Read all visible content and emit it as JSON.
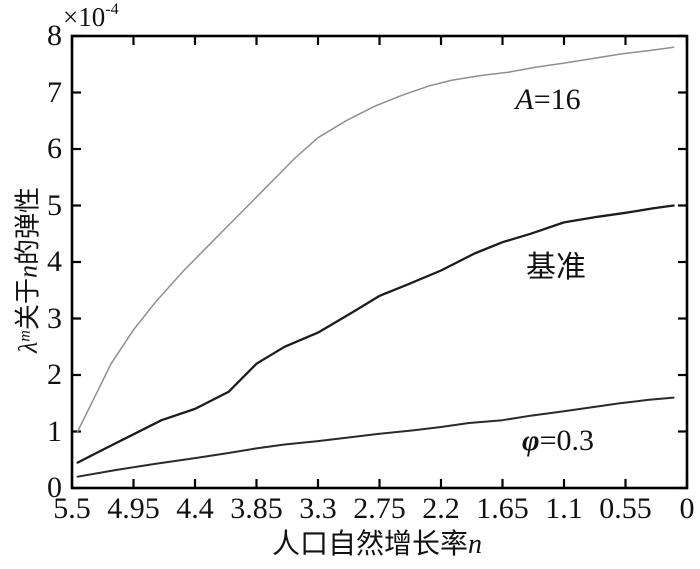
{
  "figure": {
    "background": "#ffffff",
    "axis_color": "#000000"
  },
  "labels": {
    "multiplier_base": "×10",
    "multiplier_exp": "-4",
    "ylabel_lambda": "λ",
    "ylabel_sup": "m",
    "ylabel_mid": "关于",
    "ylabel_n": "n",
    "ylabel_rest": "的弹性",
    "xlabel_main": "人口自然增长率",
    "xlabel_n": "n"
  },
  "annotations": {
    "a16": {
      "italic": "A",
      "rest": "=16"
    },
    "base": {
      "text": "基准"
    },
    "phi": {
      "italic": "φ",
      "rest": "=0.3"
    }
  },
  "chart_data": {
    "type": "line",
    "title": "",
    "xlabel": "人口自然增长率n",
    "ylabel": "λ^m关于n的弹性",
    "y_unit_multiplier": "×10^-4",
    "xlim": [
      5.5,
      0
    ],
    "ylim": [
      0,
      8
    ],
    "x_axis_reversed": true,
    "grid": false,
    "legend_position": "inline-annotations",
    "x_tick_labels": [
      "5.5",
      "4.95",
      "4.4",
      "3.85",
      "3.3",
      "2.75",
      "2.2",
      "1.65",
      "1.1",
      "0.55",
      "0"
    ],
    "x_ticks": [
      5.5,
      4.95,
      4.4,
      3.85,
      3.3,
      2.75,
      2.2,
      1.65,
      1.1,
      0.55,
      0
    ],
    "y_tick_labels": [
      "0",
      "1",
      "2",
      "3",
      "4",
      "5",
      "6",
      "7",
      "8"
    ],
    "y_ticks": [
      0,
      1,
      2,
      3,
      4,
      5,
      6,
      7,
      8
    ],
    "series": [
      {
        "name": "A=16",
        "color": "#8f8f8f",
        "stroke_width": 1.5,
        "points": [
          [
            5.45,
            1.0
          ],
          [
            5.3,
            1.6
          ],
          [
            5.15,
            2.2
          ],
          [
            4.95,
            2.8
          ],
          [
            4.75,
            3.3
          ],
          [
            4.5,
            3.85
          ],
          [
            4.25,
            4.35
          ],
          [
            4.0,
            4.85
          ],
          [
            3.75,
            5.35
          ],
          [
            3.5,
            5.85
          ],
          [
            3.3,
            6.2
          ],
          [
            3.05,
            6.5
          ],
          [
            2.8,
            6.75
          ],
          [
            2.55,
            6.95
          ],
          [
            2.3,
            7.12
          ],
          [
            2.1,
            7.22
          ],
          [
            1.85,
            7.3
          ],
          [
            1.6,
            7.36
          ],
          [
            1.35,
            7.45
          ],
          [
            1.1,
            7.52
          ],
          [
            0.85,
            7.6
          ],
          [
            0.6,
            7.68
          ],
          [
            0.35,
            7.74
          ],
          [
            0.12,
            7.8
          ]
        ]
      },
      {
        "name": "基准",
        "color": "#1c1c1c",
        "stroke_width": 2.3,
        "points": [
          [
            5.45,
            0.45
          ],
          [
            5.2,
            0.7
          ],
          [
            4.95,
            0.95
          ],
          [
            4.7,
            1.2
          ],
          [
            4.4,
            1.4
          ],
          [
            4.1,
            1.7
          ],
          [
            3.85,
            2.2
          ],
          [
            3.6,
            2.5
          ],
          [
            3.3,
            2.75
          ],
          [
            3.0,
            3.1
          ],
          [
            2.75,
            3.4
          ],
          [
            2.5,
            3.6
          ],
          [
            2.2,
            3.85
          ],
          [
            1.9,
            4.15
          ],
          [
            1.65,
            4.35
          ],
          [
            1.4,
            4.5
          ],
          [
            1.1,
            4.7
          ],
          [
            0.8,
            4.8
          ],
          [
            0.55,
            4.87
          ],
          [
            0.3,
            4.95
          ],
          [
            0.12,
            5.0
          ]
        ]
      },
      {
        "name": "φ=0.3",
        "color": "#2a2a2a",
        "stroke_width": 2.0,
        "points": [
          [
            5.45,
            0.2
          ],
          [
            5.1,
            0.32
          ],
          [
            4.75,
            0.43
          ],
          [
            4.4,
            0.53
          ],
          [
            4.1,
            0.62
          ],
          [
            3.85,
            0.7
          ],
          [
            3.6,
            0.77
          ],
          [
            3.3,
            0.83
          ],
          [
            3.0,
            0.9
          ],
          [
            2.75,
            0.96
          ],
          [
            2.45,
            1.02
          ],
          [
            2.2,
            1.08
          ],
          [
            1.95,
            1.15
          ],
          [
            1.65,
            1.2
          ],
          [
            1.4,
            1.28
          ],
          [
            1.1,
            1.36
          ],
          [
            0.85,
            1.43
          ],
          [
            0.6,
            1.5
          ],
          [
            0.35,
            1.56
          ],
          [
            0.12,
            1.6
          ]
        ]
      }
    ]
  }
}
